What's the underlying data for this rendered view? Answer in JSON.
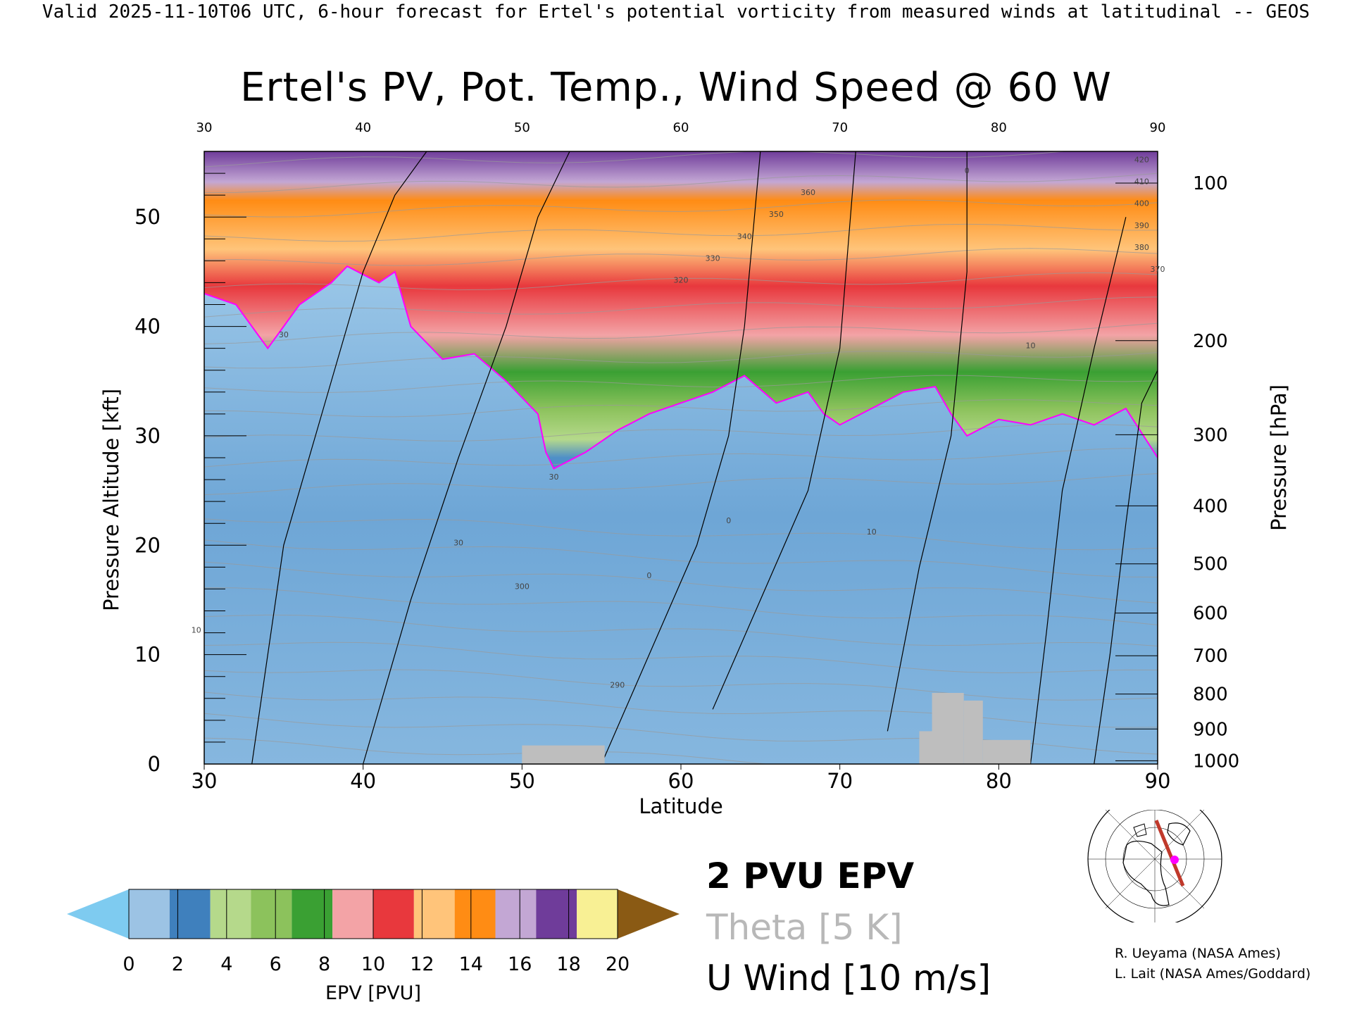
{
  "header": "Valid 2025-11-10T06 UTC, 6-hour forecast for Ertel's potential vorticity from measured winds at latitudinal -- GEOS",
  "chart_data": {
    "type": "heatmap",
    "title": "Ertel's PV, Pot. Temp., Wind Speed @ 60 W",
    "xlabel": "Latitude",
    "ylabel": "Pressure Altitude [kft]",
    "y2label": "Pressure [hPa]",
    "xlim": [
      30,
      90
    ],
    "ylim": [
      0,
      56
    ],
    "xticks": [
      30,
      40,
      50,
      60,
      70,
      80,
      90
    ],
    "yticks": [
      0,
      10,
      20,
      30,
      40,
      50
    ],
    "pressure_ticks": [
      {
        "label": "100",
        "kft": 53.1
      },
      {
        "label": "200",
        "kft": 38.7
      },
      {
        "label": "300",
        "kft": 30.1
      },
      {
        "label": "400",
        "kft": 23.6
      },
      {
        "label": "500",
        "kft": 18.3
      },
      {
        "label": "600",
        "kft": 13.8
      },
      {
        "label": "700",
        "kft": 9.9
      },
      {
        "label": "800",
        "kft": 6.4
      },
      {
        "label": "900",
        "kft": 3.2
      },
      {
        "label": "1000",
        "kft": 0.3
      }
    ],
    "tropopause_2pvu": [
      [
        30,
        43
      ],
      [
        32,
        42
      ],
      [
        34,
        38
      ],
      [
        36,
        42
      ],
      [
        38,
        44
      ],
      [
        39,
        45.5
      ],
      [
        41,
        44
      ],
      [
        42,
        45
      ],
      [
        43,
        40
      ],
      [
        45,
        37
      ],
      [
        47,
        37.5
      ],
      [
        49,
        35
      ],
      [
        51,
        32
      ],
      [
        51.5,
        28.5
      ],
      [
        52,
        27
      ],
      [
        54,
        28.5
      ],
      [
        56,
        30.5
      ],
      [
        58,
        32
      ],
      [
        60,
        33
      ],
      [
        62,
        34
      ],
      [
        64,
        35.5
      ],
      [
        66,
        33
      ],
      [
        68,
        34
      ],
      [
        69,
        32
      ],
      [
        70,
        31
      ],
      [
        72,
        32.5
      ],
      [
        74,
        34
      ],
      [
        76,
        34.5
      ],
      [
        77,
        32
      ],
      [
        78,
        30
      ],
      [
        80,
        31.5
      ],
      [
        82,
        31
      ],
      [
        84,
        32
      ],
      [
        86,
        31
      ],
      [
        88,
        32.5
      ],
      [
        90,
        28
      ]
    ],
    "epv_colorbar": {
      "label": "EPV [PVU]",
      "ticks": [
        0,
        2,
        4,
        6,
        8,
        10,
        12,
        14,
        16,
        18,
        20
      ],
      "colors": [
        "#7ecbf0",
        "#9cc3e4",
        "#3f80bd",
        "#b5d98b",
        "#8cc25c",
        "#3aa033",
        "#f3a3a6",
        "#e8383d",
        "#ffc47a",
        "#ff8c14",
        "#c3a7d4",
        "#6f3c9a",
        "#f8f094",
        "#8a5a14"
      ]
    },
    "legend": {
      "pv_label": "2 PVU EPV",
      "theta_label": "Theta [5 K]",
      "wind_label": "U Wind [10 m/s]",
      "pv_color": "#ff00ff",
      "theta_color": "#b8b8b8",
      "wind_color": "#000000"
    },
    "contour_labels": [
      "30",
      "30",
      "30",
      "10",
      "0",
      "0",
      "10",
      "10",
      "0",
      "300",
      "290",
      "320",
      "330",
      "340",
      "350",
      "360",
      "370",
      "380",
      "390",
      "400",
      "410",
      "420"
    ]
  },
  "credits": [
    "R. Ueyama (NASA Ames)",
    "L. Lait (NASA Ames/Goddard)"
  ],
  "colors": {
    "pv_contour": "#ff00ff",
    "theta_contour": "#9a9a9a",
    "terrain": "#bebebe",
    "section_line": "#c0392b",
    "section_point": "#ff00ff"
  },
  "map": {
    "icon": "north-america-polar-locator-map-icon"
  }
}
